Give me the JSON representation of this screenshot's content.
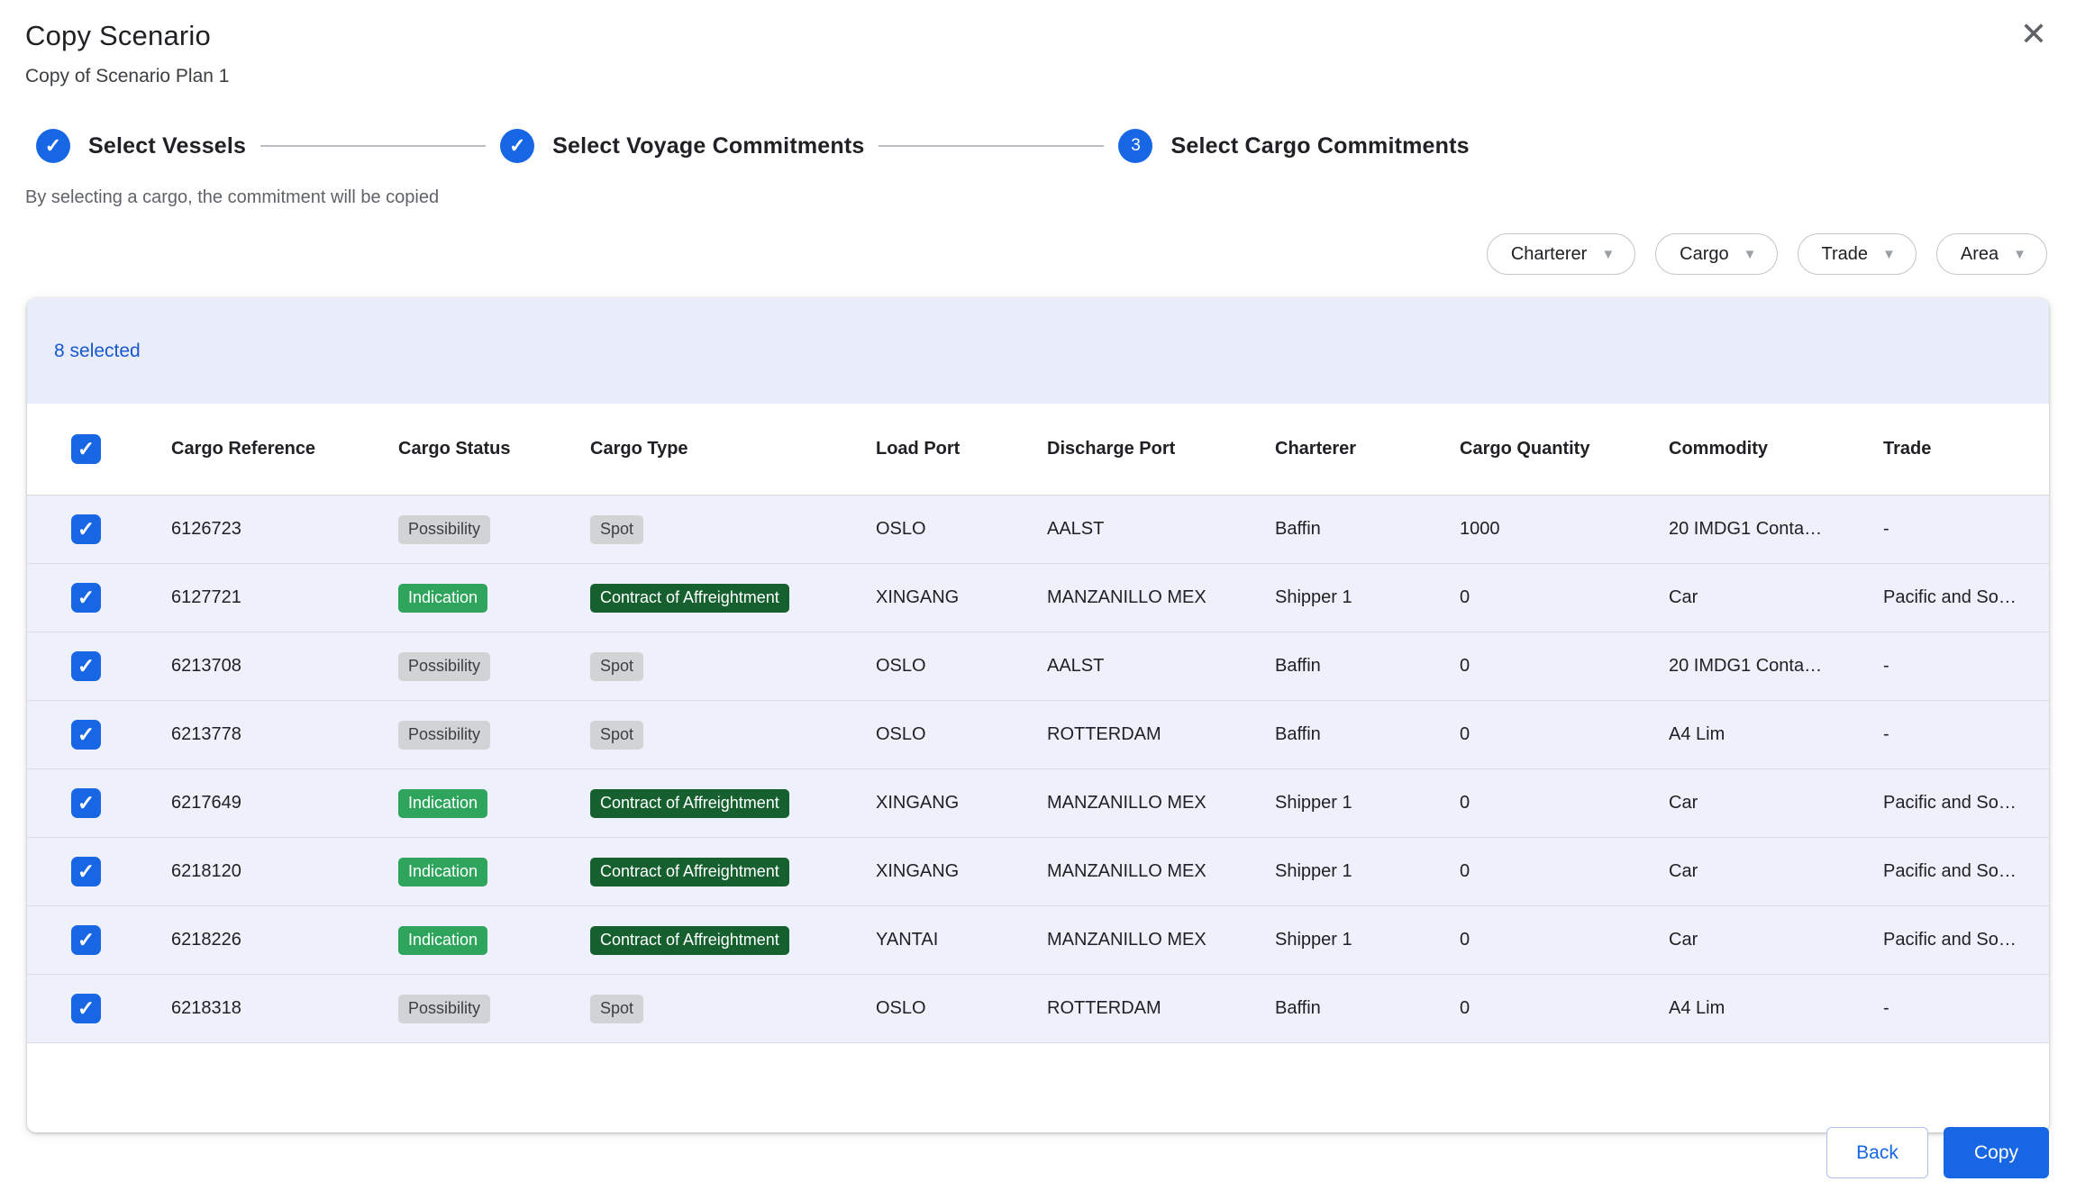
{
  "dialog": {
    "title": "Copy Scenario",
    "subtitle": "Copy of Scenario Plan 1",
    "close_icon": "✕",
    "hint": "By selecting a cargo, the commitment will be copied"
  },
  "stepper": {
    "steps": [
      {
        "label": "Select Vessels",
        "state": "complete"
      },
      {
        "label": "Select Voyage Commitments",
        "state": "complete"
      },
      {
        "label": "Select Cargo Commitments",
        "state": "current",
        "number": "3"
      }
    ]
  },
  "filters": [
    {
      "label": "Charterer"
    },
    {
      "label": "Cargo"
    },
    {
      "label": "Trade"
    },
    {
      "label": "Area"
    }
  ],
  "table": {
    "selected_text": "8 selected",
    "columns": {
      "reference": "Cargo Reference",
      "status": "Cargo Status",
      "type": "Cargo Type",
      "load_port": "Load Port",
      "discharge_port": "Discharge Port",
      "charterer": "Charterer",
      "quantity": "Cargo Quantity",
      "commodity": "Commodity",
      "trade": "Trade"
    },
    "rows": [
      {
        "checked": true,
        "reference": "6126723",
        "status": "Possibility",
        "status_variant": "gray",
        "type": "Spot",
        "type_variant": "gray",
        "load_port": "OSLO",
        "discharge_port": "AALST",
        "charterer": "Baffin",
        "quantity": "1000",
        "commodity": "20 IMDG1 Conta…",
        "trade": "-"
      },
      {
        "checked": true,
        "reference": "6127721",
        "status": "Indication",
        "status_variant": "green",
        "type": "Contract of Affreightment",
        "type_variant": "dark-green",
        "load_port": "XINGANG",
        "discharge_port": "MANZANILLO MEX",
        "charterer": "Shipper 1",
        "quantity": "0",
        "commodity": "Car",
        "trade": "Pacific and So…"
      },
      {
        "checked": true,
        "reference": "6213708",
        "status": "Possibility",
        "status_variant": "gray",
        "type": "Spot",
        "type_variant": "gray",
        "load_port": "OSLO",
        "discharge_port": "AALST",
        "charterer": "Baffin",
        "quantity": "0",
        "commodity": "20 IMDG1 Conta…",
        "trade": "-"
      },
      {
        "checked": true,
        "reference": "6213778",
        "status": "Possibility",
        "status_variant": "gray",
        "type": "Spot",
        "type_variant": "gray",
        "load_port": "OSLO",
        "discharge_port": "ROTTERDAM",
        "charterer": "Baffin",
        "quantity": "0",
        "commodity": "A4 Lim",
        "trade": "-"
      },
      {
        "checked": true,
        "reference": "6217649",
        "status": "Indication",
        "status_variant": "green",
        "type": "Contract of Affreightment",
        "type_variant": "dark-green",
        "load_port": "XINGANG",
        "discharge_port": "MANZANILLO MEX",
        "charterer": "Shipper 1",
        "quantity": "0",
        "commodity": "Car",
        "trade": "Pacific and So…"
      },
      {
        "checked": true,
        "reference": "6218120",
        "status": "Indication",
        "status_variant": "green",
        "type": "Contract of Affreightment",
        "type_variant": "dark-green",
        "load_port": "XINGANG",
        "discharge_port": "MANZANILLO MEX",
        "charterer": "Shipper 1",
        "quantity": "0",
        "commodity": "Car",
        "trade": "Pacific and So…"
      },
      {
        "checked": true,
        "reference": "6218226",
        "status": "Indication",
        "status_variant": "green",
        "type": "Contract of Affreightment",
        "type_variant": "dark-green",
        "load_port": "YANTAI",
        "discharge_port": "MANZANILLO MEX",
        "charterer": "Shipper 1",
        "quantity": "0",
        "commodity": "Car",
        "trade": "Pacific and So…"
      },
      {
        "checked": true,
        "reference": "6218318",
        "status": "Possibility",
        "status_variant": "gray",
        "type": "Spot",
        "type_variant": "gray",
        "load_port": "OSLO",
        "discharge_port": "ROTTERDAM",
        "charterer": "Baffin",
        "quantity": "0",
        "commodity": "A4 Lim",
        "trade": "-"
      }
    ]
  },
  "footer": {
    "back_label": "Back",
    "copy_label": "Copy"
  },
  "colors": {
    "accent": "#1766e3",
    "selected_banner": "#e9edfa",
    "row_background": "#eef1fb",
    "badge_gray": "#d2d3d4",
    "badge_green": "#2fa45c",
    "badge_dark_green": "#16602f"
  }
}
